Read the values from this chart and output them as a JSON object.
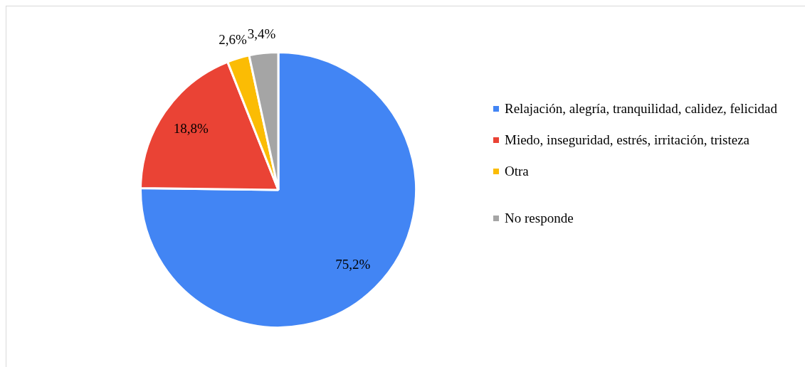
{
  "chart_data": {
    "type": "pie",
    "categories": [
      "Relajación, alegría, tranquilidad, calidez, felicidad",
      "Miedo, inseguridad, estrés, irritación, tristeza",
      "Otra",
      "No responde"
    ],
    "values": [
      75.2,
      18.8,
      2.6,
      3.4
    ],
    "colors": [
      "#4285f4",
      "#ea4335",
      "#fbbc04",
      "#a5a5a5"
    ],
    "value_labels": [
      "75,2%",
      "18,8%",
      "2,6%",
      "3,4%"
    ],
    "legend": "right"
  }
}
